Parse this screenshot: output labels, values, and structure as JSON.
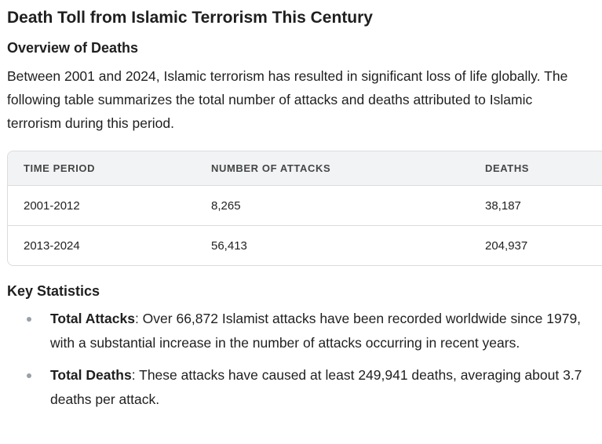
{
  "title": "Death Toll from Islamic Terrorism This Century",
  "overview": {
    "heading": "Overview of Deaths",
    "text": "Between 2001 and 2024, Islamic terrorism has resulted in significant loss of life globally. The following table summarizes the total number of attacks and deaths attributed to Islamic terrorism during this period."
  },
  "table": {
    "headers": [
      "TIME PERIOD",
      "NUMBER OF ATTACKS",
      "DEATHS"
    ],
    "rows": [
      [
        "2001-2012",
        "8,265",
        "38,187"
      ],
      [
        "2013-2024",
        "56,413",
        "204,937"
      ]
    ]
  },
  "key_statistics": {
    "heading": "Key Statistics",
    "items": [
      {
        "label": "Total Attacks",
        "text": ": Over 66,872 Islamist attacks have been recorded worldwide since 1979, with a substantial increase in the number of attacks occurring in recent years."
      },
      {
        "label": "Total Deaths",
        "text": ": These attacks have caused at least 249,941 deaths, averaging about 3.7 deaths per attack."
      }
    ]
  }
}
